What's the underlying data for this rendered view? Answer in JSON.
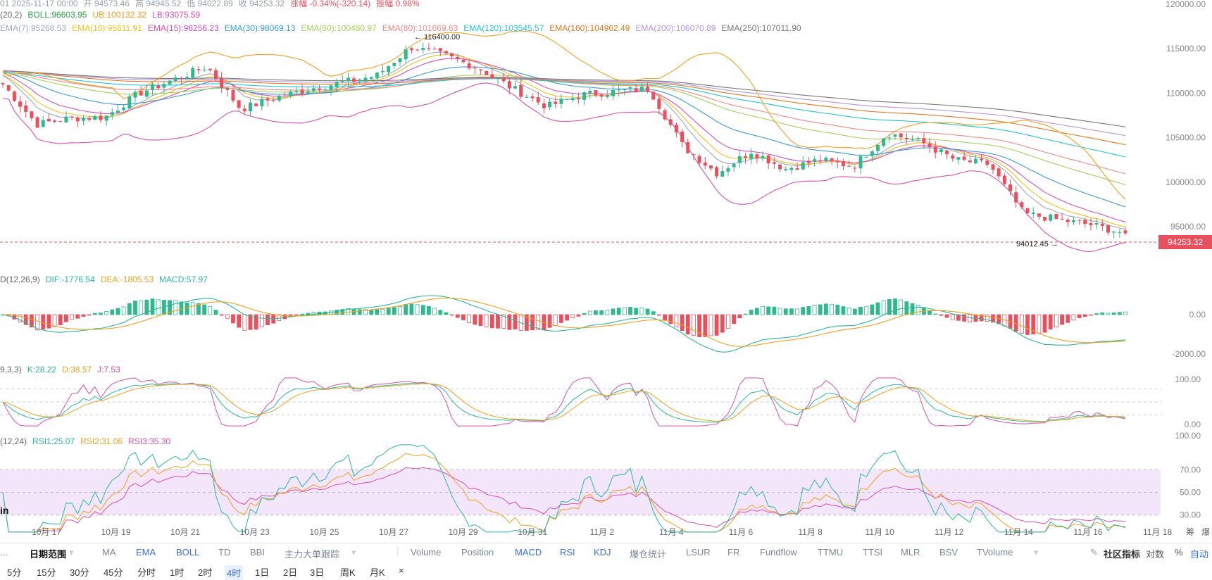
{
  "header": {
    "ohlc_line": [
      {
        "text": "01  2025-11-17 00:00",
        "color": "#9aa0a8"
      },
      {
        "text": "开 94573.46",
        "color": "#9aa0a8"
      },
      {
        "text": "高 94945.52",
        "color": "#9aa0a8"
      },
      {
        "text": "低 94022.89",
        "color": "#9aa0a8"
      },
      {
        "text": "收 94253.32",
        "color": "#9aa0a8"
      },
      {
        "text": "涨幅 -0.34%(-320.14)",
        "color": "#e8505e"
      },
      {
        "text": "振幅 0.98%",
        "color": "#e8505e"
      }
    ],
    "boll_line": [
      {
        "text": "(20,2)",
        "color": "#666666"
      },
      {
        "text": "BOLL:96603.95",
        "color": "#29a847"
      },
      {
        "text": "UB:100132.32",
        "color": "#f0a020"
      },
      {
        "text": "LB:93075.59",
        "color": "#d94fb0"
      }
    ],
    "ema_line": [
      {
        "text": "EMA(7):95268.53",
        "color": "#a0a8b4"
      },
      {
        "text": "EMA(10):95611.91",
        "color": "#f0c020"
      },
      {
        "text": "EMA(15):96256.23",
        "color": "#d94fb0"
      },
      {
        "text": "EMA(30):98069.13",
        "color": "#3a9bd8"
      },
      {
        "text": "EMA(60):100480.97",
        "color": "#a6cf5c"
      },
      {
        "text": "EMA(80):101669.63",
        "color": "#f08a8a"
      },
      {
        "text": "EMA(120):103545.57",
        "color": "#22c4d4"
      },
      {
        "text": "EMA(160):104962.49",
        "color": "#e07820"
      },
      {
        "text": "EMA(200):106070.89",
        "color": "#b594e0"
      },
      {
        "text": "EMA(250):107011.90",
        "color": "#777777"
      }
    ],
    "macd_line": [
      {
        "text": "D(12,26,9)",
        "color": "#666666"
      },
      {
        "text": "DIF:-1776.54",
        "color": "#29b89a"
      },
      {
        "text": "DEA:-1805.53",
        "color": "#f0a020"
      },
      {
        "text": "MACD:57.97",
        "color": "#29b89a"
      }
    ],
    "kdj_line": [
      {
        "text": "9,3,3)",
        "color": "#666666"
      },
      {
        "text": "K:28.22",
        "color": "#29b89a"
      },
      {
        "text": "D:38.57",
        "color": "#f0a020"
      },
      {
        "text": "J:7.53",
        "color": "#d94fb0"
      }
    ],
    "rsi_line": [
      {
        "text": "(12,24)",
        "color": "#666666"
      },
      {
        "text": "RSI1:25.07",
        "color": "#29b89a"
      },
      {
        "text": "RSI2:31.06",
        "color": "#f0a020"
      },
      {
        "text": "RSI3:35.30",
        "color": "#d94fb0"
      }
    ]
  },
  "price_tag": "94253.32",
  "high_marker": "116400.00",
  "low_marker": "94012.45",
  "watermark": "in",
  "price_axis": [
    "120000.00",
    "115000.00",
    "110000.00",
    "105000.00",
    "100000.00",
    "95000.00"
  ],
  "price_axis_values": [
    120000,
    115000,
    110000,
    105000,
    100000,
    95000
  ],
  "macd_axis": [
    "0.00",
    "-2000.00"
  ],
  "kdj_axis": [
    "100.00",
    "0.00"
  ],
  "rsi_axis": [
    "100.00",
    "70.00",
    "50.00",
    "30.00"
  ],
  "date_axis": [
    "10月 17",
    "10月 19",
    "10月 21",
    "10月 23",
    "10月 25",
    "10月 27",
    "10月 29",
    "10月 31",
    "11月 2",
    "11月 4",
    "11月 6",
    "11月 8",
    "11月 10",
    "11月 12",
    "11月 14",
    "11月 16",
    "11月 18"
  ],
  "toolbar": {
    "left_items": [
      "...",
      "日期范围",
      "MA",
      "EMA",
      "BOLL",
      "TD",
      "BBI",
      "主力大单跟踪"
    ],
    "indicator_items": [
      "Volume",
      "Position",
      "MACD",
      "RSI",
      "KDJ",
      "爆仓统计",
      "LSUR",
      "FR",
      "Fundflow",
      "TTMU",
      "TTSI",
      "MLR",
      "BSV",
      "TVolume"
    ],
    "right_items": [
      "社区指标",
      "对数",
      "%",
      "自动"
    ],
    "corner_items": [
      "筹",
      "爆"
    ]
  },
  "timeframes": [
    "5分",
    "15分",
    "30分",
    "45分",
    "分时",
    "1时",
    "2时",
    "4时",
    "1日",
    "2日",
    "3日",
    "周K",
    "月K",
    "×"
  ],
  "active_timeframe": "4时",
  "colors": {
    "up": "#2fb98c",
    "down": "#e8505e",
    "rsi_band": "#f3e6fb"
  },
  "chart_data": {
    "type": "candlestick",
    "symbol_timeframe": "4h",
    "last_bar": {
      "time": "2025-11-17 00:00",
      "open": 94573.46,
      "high": 94945.52,
      "low": 94022.89,
      "close": 94253.32
    },
    "period_high": 116400.0,
    "period_low": 94012.45,
    "y_range": [
      92000,
      120000
    ],
    "x_range": [
      "10月 16",
      "11月 18"
    ],
    "close_path": [
      {
        "date": "10月 16",
        "close": 111000
      },
      {
        "date": "10月 17",
        "close": 106500
      },
      {
        "date": "10月 18",
        "close": 107200
      },
      {
        "date": "10月 19",
        "close": 107300
      },
      {
        "date": "10月 20",
        "close": 110000
      },
      {
        "date": "10月 21",
        "close": 111500
      },
      {
        "date": "10月 21",
        "close": 113000
      },
      {
        "date": "10月 22",
        "close": 108200
      },
      {
        "date": "10月 23",
        "close": 109500
      },
      {
        "date": "10月 24",
        "close": 110500
      },
      {
        "date": "10月 25",
        "close": 111200
      },
      {
        "date": "10月 26",
        "close": 112000
      },
      {
        "date": "10月 27",
        "close": 115200
      },
      {
        "date": "10月 28",
        "close": 114200
      },
      {
        "date": "10月 29",
        "close": 112800
      },
      {
        "date": "10月 30",
        "close": 110500
      },
      {
        "date": "10月 31",
        "close": 108500
      },
      {
        "date": "11月 1",
        "close": 109800
      },
      {
        "date": "11月 2",
        "close": 110200
      },
      {
        "date": "11月 3",
        "close": 110500
      },
      {
        "date": "11月 4",
        "close": 104000
      },
      {
        "date": "11月 5",
        "close": 101000
      },
      {
        "date": "11月 6",
        "close": 103500
      },
      {
        "date": "11月 7",
        "close": 101500
      },
      {
        "date": "11月 8",
        "close": 102500
      },
      {
        "date": "11月 9",
        "close": 101800
      },
      {
        "date": "11月 10",
        "close": 105500
      },
      {
        "date": "11月 11",
        "close": 104500
      },
      {
        "date": "11月 12",
        "close": 102500
      },
      {
        "date": "11月 13",
        "close": 102000
      },
      {
        "date": "11月 14",
        "close": 96500
      },
      {
        "date": "11月 15",
        "close": 95800
      },
      {
        "date": "11月 16",
        "close": 95200
      },
      {
        "date": "11月 17",
        "close": 94253
      }
    ],
    "ema_250_end": 107011.9,
    "ema_7_end": 95268.53,
    "boll": {
      "mid": 96603.95,
      "upper": 100132.32,
      "lower": 93075.59
    },
    "macd": {
      "dif": -1776.54,
      "dea": -1805.53,
      "hist": 57.97
    },
    "kdj": {
      "k": 28.22,
      "d": 38.57,
      "j": 7.53
    },
    "rsi": {
      "rsi1": 25.07,
      "rsi2": 31.06,
      "rsi3": 35.3
    }
  }
}
